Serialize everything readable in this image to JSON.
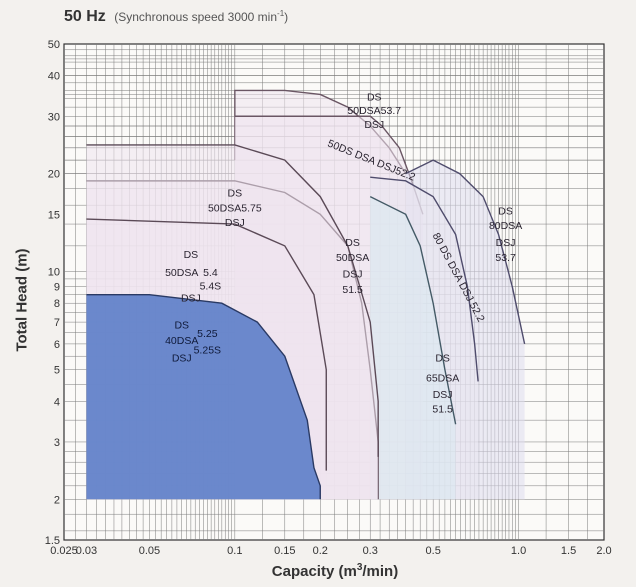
{
  "title": {
    "hz": "50 Hz",
    "subtitle": "(Synchronous speed  3000 min",
    "subtitle_exp": "-1",
    "subtitle_close": ")"
  },
  "chart_data": {
    "type": "area",
    "title": "50 Hz (Synchronous speed 3000 min-1)",
    "xlabel_main": "Capacity (m",
    "xlabel_sup": "3",
    "xlabel_end": "/min)",
    "ylabel": "Total Head (m)",
    "x_scale": "log",
    "y_scale": "log",
    "xlim": [
      0.025,
      2.0
    ],
    "ylim": [
      1.5,
      50
    ],
    "x_ticks": [
      {
        "v": 0.025,
        "label": "0.025"
      },
      {
        "v": 0.03,
        "label": "0.03"
      },
      {
        "v": 0.05,
        "label": "0.05"
      },
      {
        "v": 0.1,
        "label": "0.1"
      },
      {
        "v": 0.15,
        "label": "0.15"
      },
      {
        "v": 0.2,
        "label": "0.2"
      },
      {
        "v": 0.3,
        "label": "0.3"
      },
      {
        "v": 0.5,
        "label": "0.5"
      },
      {
        "v": 1.0,
        "label": "1.0"
      },
      {
        "v": 1.5,
        "label": "1.5"
      },
      {
        "v": 2.0,
        "label": "2.0"
      }
    ],
    "y_ticks": [
      {
        "v": 1.5,
        "label": "1.5"
      },
      {
        "v": 2,
        "label": "2"
      },
      {
        "v": 3,
        "label": "3"
      },
      {
        "v": 4,
        "label": "4"
      },
      {
        "v": 5,
        "label": "5"
      },
      {
        "v": 6,
        "label": "6"
      },
      {
        "v": 7,
        "label": "7"
      },
      {
        "v": 8,
        "label": "8"
      },
      {
        "v": 9,
        "label": "9"
      },
      {
        "v": 10,
        "label": "10"
      },
      {
        "v": 15,
        "label": "15"
      },
      {
        "v": 20,
        "label": "20"
      },
      {
        "v": 30,
        "label": "30"
      },
      {
        "v": 40,
        "label": "40"
      },
      {
        "v": 50,
        "label": "50"
      }
    ],
    "grid": true,
    "regions": [
      {
        "id": "50dsa-53.7",
        "fill": "#efe3ee",
        "stroke": "#6a5664",
        "boundary": [
          [
            0.1,
            22
          ],
          [
            0.1,
            36
          ],
          [
            0.15,
            36
          ],
          [
            0.2,
            35
          ],
          [
            0.25,
            32
          ],
          [
            0.3,
            28
          ],
          [
            0.35,
            24
          ],
          [
            0.4,
            20
          ],
          [
            0.4,
            22
          ],
          [
            0.3,
            28
          ],
          [
            0.2,
            30
          ],
          [
            0.1,
            30
          ]
        ],
        "outer": [
          [
            0.1,
            22
          ],
          [
            0.1,
            36
          ],
          [
            0.15,
            36
          ],
          [
            0.2,
            35
          ],
          [
            0.25,
            32
          ],
          [
            0.3,
            28
          ],
          [
            0.35,
            24
          ],
          [
            0.4,
            20
          ]
        ],
        "labels": [
          [
            "DS",
            0.31,
            33.5
          ],
          [
            "50DSA53.7",
            0.31,
            30.5
          ],
          [
            "DSJ",
            0.31,
            27.6
          ]
        ]
      },
      {
        "id": "50dsa-52.2",
        "fill": "#efe3ee",
        "stroke": "#6a5664",
        "outer": [
          [
            0.1,
            30
          ],
          [
            0.3,
            30
          ],
          [
            0.33,
            28
          ],
          [
            0.38,
            24
          ],
          [
            0.42,
            19
          ],
          [
            0.46,
            15
          ]
        ],
        "labels": [
          [
            "50DS DSA DSJ52.2",
            0.3,
            21.5
          ]
        ]
      },
      {
        "id": "80dsa-53.7",
        "fill": "#dfdcee",
        "stroke": "#4f4c6c",
        "outer": [
          [
            0.4,
            20
          ],
          [
            0.5,
            22
          ],
          [
            0.62,
            20
          ],
          [
            0.75,
            17
          ],
          [
            0.85,
            13
          ],
          [
            0.95,
            9
          ],
          [
            1.05,
            6
          ],
          [
            1.05,
            6
          ]
        ],
        "labels": [
          [
            "DS",
            0.9,
            15
          ],
          [
            "80DSA",
            0.9,
            13.5
          ],
          [
            "DSJ",
            0.9,
            12
          ],
          [
            "53.7",
            0.9,
            10.8
          ]
        ]
      },
      {
        "id": "80dsa-52.2",
        "fill": "#e8e4ee",
        "stroke": "#4f4c6c",
        "outer": [
          [
            0.3,
            19.5
          ],
          [
            0.4,
            19
          ],
          [
            0.5,
            17
          ],
          [
            0.6,
            13
          ],
          [
            0.66,
            9
          ],
          [
            0.7,
            6
          ],
          [
            0.72,
            4.6
          ]
        ],
        "labels": [
          [
            "80 DS DSA DSJ 52.2",
            0.6,
            9.5
          ]
        ]
      },
      {
        "id": "65dsa-51.5",
        "fill": "#d8e9f0",
        "stroke": "#445a66",
        "outer": [
          [
            0.3,
            17
          ],
          [
            0.4,
            15
          ],
          [
            0.45,
            12
          ],
          [
            0.5,
            8
          ],
          [
            0.55,
            5
          ],
          [
            0.6,
            3.4
          ]
        ],
        "labels": [
          [
            "DS",
            0.54,
            5.3
          ],
          [
            "65DSA",
            0.54,
            4.6
          ],
          [
            "DSJ",
            0.54,
            4.1
          ],
          [
            "51.5",
            0.54,
            3.7
          ]
        ]
      },
      {
        "id": "50dsa-51.5",
        "fill": "#efe3ee",
        "stroke": "#5b4a57",
        "outer": [
          [
            0.03,
            19
          ],
          [
            0.1,
            19
          ],
          [
            0.15,
            17.5
          ],
          [
            0.2,
            15
          ],
          [
            0.25,
            12
          ],
          [
            0.28,
            8
          ],
          [
            0.3,
            5
          ],
          [
            0.32,
            3
          ],
          [
            0.32,
            2
          ]
        ],
        "labels": [
          [
            "DS",
            0.26,
            12
          ],
          [
            "50DSA",
            0.26,
            10.8
          ],
          [
            "DSJ",
            0.26,
            9.6
          ],
          [
            "51.5",
            0.26,
            8.6
          ]
        ]
      },
      {
        "id": "50dsa-5.75",
        "fill": "#efe3ee",
        "stroke": "#5b4a57",
        "outer": [
          [
            0.03,
            24.5
          ],
          [
            0.1,
            24.5
          ],
          [
            0.15,
            22
          ],
          [
            0.2,
            17
          ],
          [
            0.25,
            12
          ],
          [
            0.3,
            7
          ],
          [
            0.32,
            4
          ],
          [
            0.32,
            2.7
          ]
        ],
        "labels": [
          [
            "DS",
            0.1,
            17
          ],
          [
            "50DSA5.75",
            0.1,
            15.3
          ],
          [
            "DSJ",
            0.1,
            13.8
          ]
        ]
      },
      {
        "id": "50dsa-5.4",
        "fill": "#efe3ee",
        "stroke": "#5b4a57",
        "outer": [
          [
            0.03,
            14.5
          ],
          [
            0.1,
            14
          ],
          [
            0.15,
            12
          ],
          [
            0.19,
            8.5
          ],
          [
            0.21,
            5
          ],
          [
            0.21,
            2.45
          ]
        ],
        "labels": [
          [
            "DS",
            0.07,
            11
          ],
          [
            "50DSA",
            0.065,
            9.7
          ],
          [
            "5.4",
            0.082,
            9.7
          ],
          [
            "5.4S",
            0.082,
            8.8
          ],
          [
            "DSJ",
            0.07,
            8.1
          ]
        ]
      },
      {
        "id": "40dsa-5.25",
        "fill": "#5c7dc8",
        "stroke": "#2a3a64",
        "outer": [
          [
            0.03,
            8.5
          ],
          [
            0.05,
            8.5
          ],
          [
            0.09,
            8
          ],
          [
            0.12,
            7
          ],
          [
            0.15,
            5.5
          ],
          [
            0.18,
            3.5
          ],
          [
            0.19,
            2.5
          ],
          [
            0.2,
            2.2
          ],
          [
            0.2,
            2
          ]
        ],
        "labels": [
          [
            "DS",
            0.065,
            6.7
          ],
          [
            "40DSA",
            0.065,
            6.0
          ],
          [
            "5.25",
            0.08,
            6.3
          ],
          [
            "5.25S",
            0.08,
            5.6
          ],
          [
            "DSJ",
            0.065,
            5.3
          ]
        ]
      }
    ]
  }
}
